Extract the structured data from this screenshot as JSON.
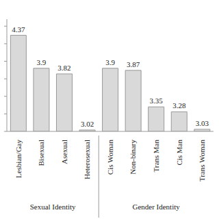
{
  "chart_data": {
    "type": "bar",
    "groups": [
      {
        "name": "Sexual Identity",
        "categories": [
          "Lesbian/Gay",
          "Bisexual",
          "Asexual",
          "Heterosexual"
        ],
        "values": [
          4.37,
          3.9,
          3.82,
          3.02
        ]
      },
      {
        "name": "Gender Identity",
        "categories": [
          "Cis Woman",
          "Non-binary",
          "Trans Man",
          "Cis Man",
          "Trans Woman"
        ],
        "values": [
          3.9,
          3.87,
          3.35,
          3.28,
          3.03
        ]
      }
    ],
    "color": "#d9d9d9",
    "ylim": [
      3,
      4.6
    ],
    "yticks": [
      3,
      3.25,
      3.5,
      3.75,
      4,
      4.25,
      4.5
    ],
    "data_labels": true,
    "tick_labels": "x"
  }
}
